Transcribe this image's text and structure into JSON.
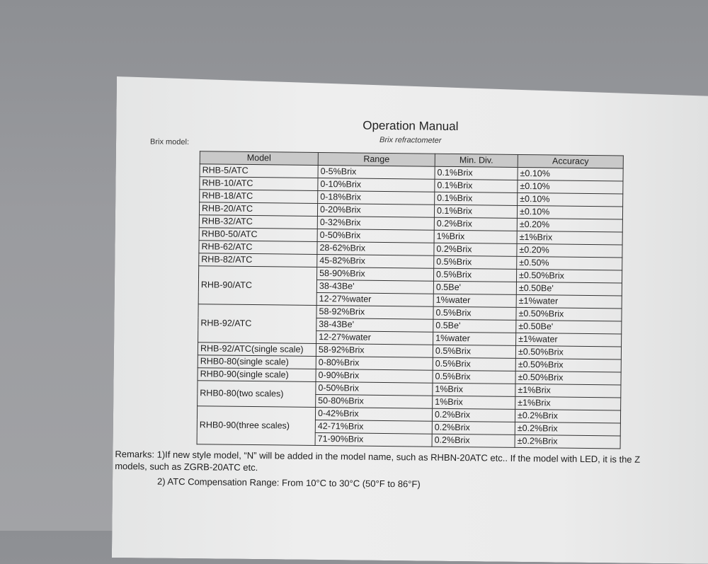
{
  "header": {
    "title": "Operation Manual",
    "subtitle": "Brix refractometer",
    "section_label": "Brix model:"
  },
  "table": {
    "columns": [
      "Model",
      "Range",
      "Min. Div.",
      "Accuracy"
    ],
    "groups": [
      {
        "model": "RHB-5/ATC",
        "rows": [
          [
            "0-5%Brix",
            "0.1%Brix",
            "±0.10%"
          ]
        ]
      },
      {
        "model": "RHB-10/ATC",
        "rows": [
          [
            "0-10%Brix",
            "0.1%Brix",
            "±0.10%"
          ]
        ]
      },
      {
        "model": "RHB-18/ATC",
        "rows": [
          [
            "0-18%Brix",
            "0.1%Brix",
            "±0.10%"
          ]
        ]
      },
      {
        "model": "RHB-20/ATC",
        "rows": [
          [
            "0-20%Brix",
            "0.1%Brix",
            "±0.10%"
          ]
        ]
      },
      {
        "model": "RHB-32/ATC",
        "rows": [
          [
            "0-32%Brix",
            "0.2%Brix",
            "±0.20%"
          ]
        ]
      },
      {
        "model": "RHB0-50/ATC",
        "rows": [
          [
            "0-50%Brix",
            "1%Brix",
            "±1%Brix"
          ]
        ]
      },
      {
        "model": "RHB-62/ATC",
        "rows": [
          [
            "28-62%Brix",
            "0.2%Brix",
            "±0.20%"
          ]
        ]
      },
      {
        "model": "RHB-82/ATC",
        "rows": [
          [
            "45-82%Brix",
            "0.5%Brix",
            "±0.50%"
          ]
        ]
      },
      {
        "model": "RHB-90/ATC",
        "rows": [
          [
            "58-90%Brix",
            "0.5%Brix",
            "±0.50%Brix"
          ],
          [
            "38-43Be'",
            "0.5Be'",
            "±0.50Be'"
          ],
          [
            "12-27%water",
            "1%water",
            "±1%water"
          ]
        ]
      },
      {
        "model": "RHB-92/ATC",
        "rows": [
          [
            "58-92%Brix",
            "0.5%Brix",
            "±0.50%Brix"
          ],
          [
            "38-43Be'",
            "0.5Be'",
            "±0.50Be'"
          ],
          [
            "12-27%water",
            "1%water",
            "±1%water"
          ]
        ]
      },
      {
        "model": "RHB-92/ATC(single scale)",
        "rows": [
          [
            "58-92%Brix",
            "0.5%Brix",
            "±0.50%Brix"
          ]
        ]
      },
      {
        "model": "RHB0-80(single scale)",
        "rows": [
          [
            "0-80%Brix",
            "0.5%Brix",
            "±0.50%Brix"
          ]
        ]
      },
      {
        "model": "RHB0-90(single scale)",
        "rows": [
          [
            "0-90%Brix",
            "0.5%Brix",
            "±0.50%Brix"
          ]
        ]
      },
      {
        "model": "RHB0-80(two scales)",
        "rows": [
          [
            "0-50%Brix",
            "1%Brix",
            "±1%Brix"
          ],
          [
            "50-80%Brix",
            "1%Brix",
            "±1%Brix"
          ]
        ]
      },
      {
        "model": "RHB0-90(three scales)",
        "rows": [
          [
            "0-42%Brix",
            "0.2%Brix",
            "±0.2%Brix"
          ],
          [
            "42-71%Brix",
            "0.2%Brix",
            "±0.2%Brix"
          ],
          [
            "71-90%Brix",
            "0.2%Brix",
            "±0.2%Brix"
          ]
        ]
      }
    ]
  },
  "remarks": {
    "line1": "Remarks: 1)If new style model, “N” will be added in the model name, such as RHBN-20ATC etc.. If the model with LED, it is the Z",
    "line1b": "models, such as ZGRB-20ATC etc.",
    "line2": "2) ATC Compensation Range: From 10°C to 30°C (50°F to 86°F)"
  }
}
